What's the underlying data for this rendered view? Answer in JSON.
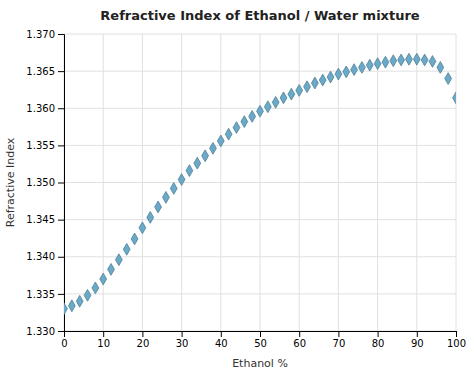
{
  "chart_data": {
    "type": "scatter",
    "title": "Refractive Index of Ethanol / Water mixture",
    "xlabel": "Ethanol %",
    "ylabel": "Refractive Index",
    "x": [
      0,
      2,
      4,
      6,
      8,
      10,
      12,
      14,
      16,
      18,
      20,
      22,
      24,
      26,
      28,
      30,
      32,
      34,
      36,
      38,
      40,
      42,
      44,
      46,
      48,
      50,
      52,
      54,
      56,
      58,
      60,
      62,
      64,
      66,
      68,
      70,
      72,
      74,
      76,
      78,
      80,
      82,
      84,
      86,
      88,
      90,
      92,
      94,
      96,
      98,
      100
    ],
    "values": [
      1.333,
      1.3334,
      1.334,
      1.3348,
      1.3358,
      1.337,
      1.3383,
      1.3396,
      1.341,
      1.3424,
      1.3439,
      1.3453,
      1.3467,
      1.348,
      1.3492,
      1.3504,
      1.3516,
      1.3526,
      1.3536,
      1.3546,
      1.3556,
      1.3565,
      1.3574,
      1.3582,
      1.3589,
      1.3596,
      1.3602,
      1.3608,
      1.3614,
      1.3619,
      1.3624,
      1.3629,
      1.3634,
      1.3638,
      1.3642,
      1.3646,
      1.3649,
      1.3652,
      1.3655,
      1.3658,
      1.366,
      1.3662,
      1.3664,
      1.3665,
      1.3666,
      1.3666,
      1.3665,
      1.3663,
      1.3655,
      1.364,
      1.3614
    ],
    "color": "#6aaac8",
    "marker": "diamond",
    "xlim": [
      0,
      100
    ],
    "ylim": [
      1.33,
      1.37
    ],
    "xticks": [
      0,
      10,
      20,
      30,
      40,
      50,
      60,
      70,
      80,
      90,
      100
    ],
    "yticks": [
      {
        "value": 1.33,
        "label": "1.330"
      },
      1.335,
      {
        "value": 1.34,
        "label": "1.340"
      },
      1.345,
      {
        "value": 1.35,
        "label": "1.350"
      },
      1.355,
      {
        "value": 1.36,
        "label": "1.360"
      },
      1.365,
      {
        "value": 1.37,
        "label": "1.370"
      }
    ],
    "grid": true
  }
}
